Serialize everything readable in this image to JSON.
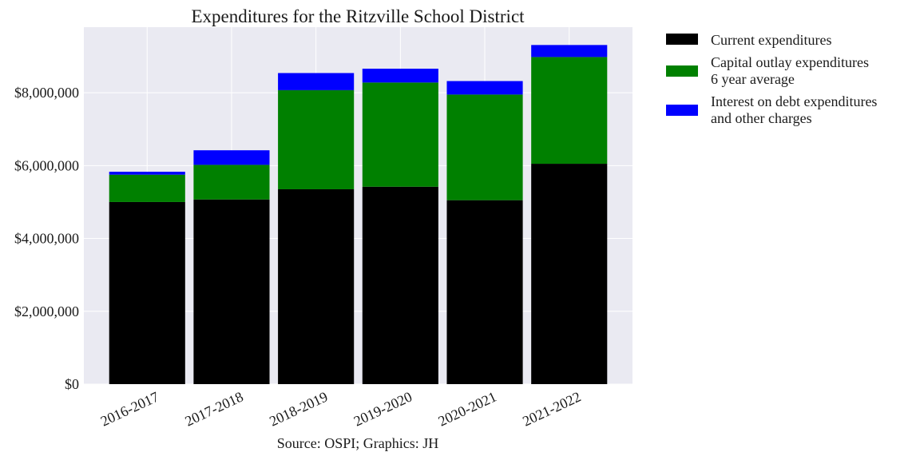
{
  "chart_data": {
    "type": "bar",
    "stacked": true,
    "title": "Expenditures for the Ritzville School District",
    "caption": "Source: OSPI; Graphics: JH",
    "categories": [
      "2016-2017",
      "2017-2018",
      "2018-2019",
      "2019-2020",
      "2020-2021",
      "2021-2022"
    ],
    "series": [
      {
        "name": "Current expenditures",
        "color": "#000000",
        "values": [
          5000000,
          5070000,
          5350000,
          5420000,
          5050000,
          6050000
        ]
      },
      {
        "name": "Capital outlay expenditures 6 year average",
        "legend_lines": [
          "Capital outlay expenditures",
          "6 year average"
        ],
        "color": "#008000",
        "values": [
          750000,
          950000,
          2720000,
          2860000,
          2900000,
          2930000
        ]
      },
      {
        "name": "Interest on debt expenditures and other charges",
        "legend_lines": [
          "Interest on debt expenditures",
          "and other charges"
        ],
        "color": "#0000ff",
        "values": [
          80000,
          400000,
          470000,
          380000,
          370000,
          330000
        ]
      }
    ],
    "ylim": [
      0,
      9800000
    ],
    "yticks": [
      0,
      2000000,
      4000000,
      6000000,
      8000000
    ],
    "ytick_labels": [
      "$0",
      "$2,000,000",
      "$4,000,000",
      "$6,000,000",
      "$8,000,000"
    ],
    "grid": true,
    "legend_position": "outside-right",
    "xlabel": "",
    "ylabel": ""
  }
}
